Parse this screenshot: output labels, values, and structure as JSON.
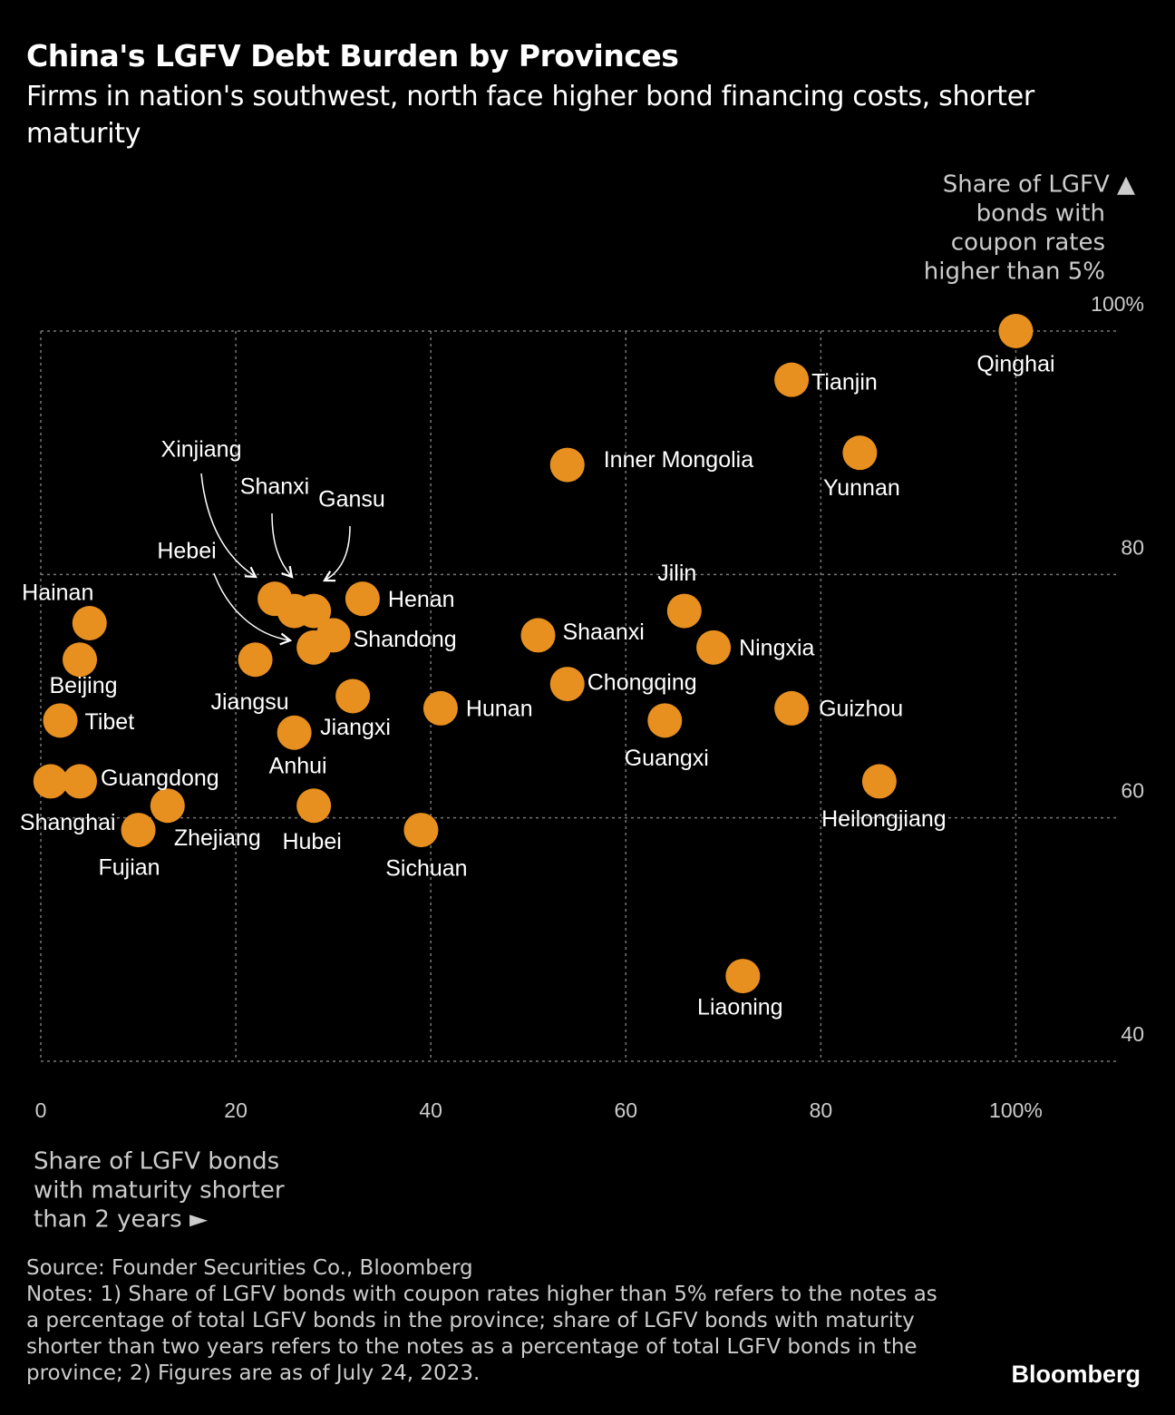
{
  "chart_data": {
    "type": "scatter",
    "title": "China's LGFV Debt Burden by Provinces",
    "subtitle": "Firms in nation's southwest, north face higher bond financing costs, shorter maturity",
    "y_axis_label": [
      "Share of LGFV ▲",
      "bonds with",
      "coupon rates",
      "higher than 5%"
    ],
    "x_axis_label": [
      "Share of LGFV bonds",
      "with maturity shorter",
      "than 2 years ►"
    ],
    "labels": [
      "Qinghai",
      "Tianjin",
      "Yunnan",
      "Inner Mongolia",
      "Henan",
      "Jilin",
      "Shaanxi",
      "Ningxia",
      "Chongqing",
      "Guizhou",
      "Hunan",
      "Guangxi",
      "Heilongjiang",
      "Liaoning",
      "Sichuan",
      "Hubei",
      "Zhejiang",
      "Fujian",
      "Shanghai",
      "Guangdong",
      "Tibet",
      "Beijing",
      "Hainan",
      "Jiangsu",
      "Jiangxi",
      "Anhui",
      "Shandong",
      "Xinjiang",
      "Shanxi",
      "Gansu",
      "Hebei"
    ],
    "x": [
      100,
      77,
      84,
      54,
      33,
      66,
      51,
      69,
      54,
      77,
      41,
      64,
      86,
      72,
      39,
      28,
      13,
      10,
      1,
      4,
      2,
      4,
      5,
      22,
      32,
      26,
      30,
      24,
      26,
      28,
      28
    ],
    "values": [
      100,
      96,
      90,
      89,
      78,
      77,
      75,
      74,
      71,
      69,
      69,
      68,
      63,
      47,
      59,
      61,
      61,
      59,
      63,
      63,
      68,
      73,
      76,
      73,
      70,
      67,
      75,
      78,
      77,
      77,
      74
    ],
    "color": "#e8901f",
    "xlim": [
      0,
      110
    ],
    "ylim": [
      40,
      100
    ],
    "xticks": [
      0,
      20,
      40,
      60,
      80,
      {
        "value": 100,
        "label": "100%"
      }
    ],
    "yticks": [
      {
        "value": 100,
        "label": "100%"
      },
      80,
      60,
      40
    ],
    "grid": true,
    "source": "Source: Founder Securities Co., Bloomberg",
    "notes": "Notes: 1) Share of LGFV bonds with coupon rates higher than 5% refers to the notes as a percentage of total LGFV bonds in the province; share of LGFV bonds with maturity shorter than two years refers to the notes as a percentage of total LGFV bonds in the province; 2) Figures are as of July 24, 2023.",
    "brand": "Bloomberg"
  }
}
